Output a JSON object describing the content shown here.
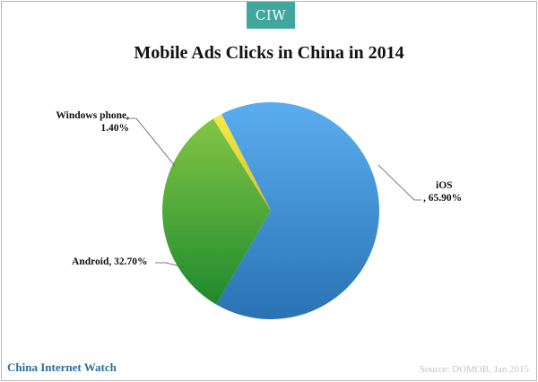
{
  "badge": {
    "text": "CIW"
  },
  "chart_data": {
    "type": "pie",
    "title": "Mobile Ads Clicks in China in 2014",
    "slices": [
      {
        "name": "iOS",
        "value": 65.9,
        "label": ", 65.90%",
        "color": "#3f8fd0"
      },
      {
        "name": "Android",
        "value": 32.7,
        "label": "Android,  32.70%",
        "color": "#4aaa33"
      },
      {
        "name": "Windows phone",
        "value": 1.4,
        "label": "Windows  phone,",
        "label2": "1.40%",
        "color": "#f2e23a"
      }
    ]
  },
  "footer": {
    "brand": "China Internet Watch",
    "source": "Source: DOMOB, Jan 2015"
  }
}
